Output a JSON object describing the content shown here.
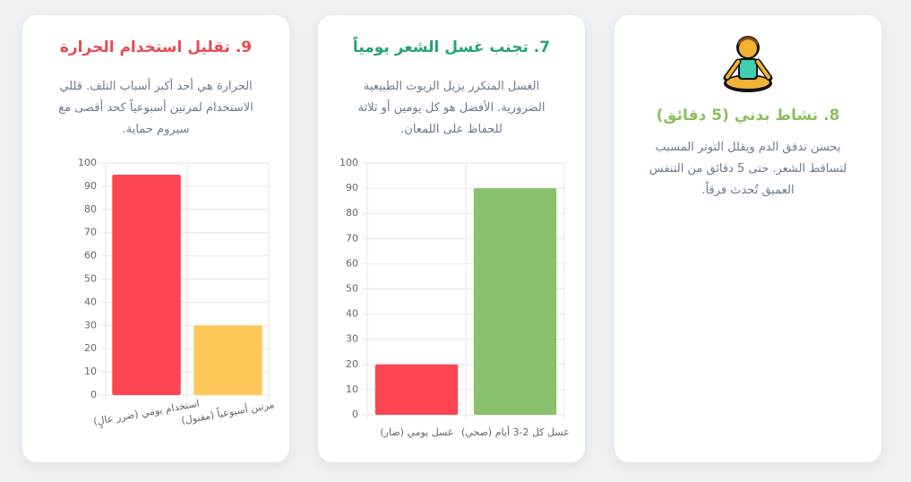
{
  "cards": [
    {
      "title": "9. تقليل استخدام الحرارة",
      "text": "الحرارة هي أحد أكبر أسباب التلف. قللي الاستخدام لمرتين أسبوعياً كحد أقصى مع سيروم حماية."
    },
    {
      "title": "7. تجنب غسل الشعر يومياً",
      "text": "الغسل المتكرر يزيل الزيوت الطبيعية الضرورية. الأفضل هو كل يومين أو ثلاثة للحفاظ على اللمعان."
    },
    {
      "title": "8. نشاط بدني (5 دقائق)",
      "text": "يحسن تدفق الدم ويقلل التوتر المسبب لتساقط الشعر. حتى 5 دقائق من التنفس العميق تُحدث فرقاً."
    }
  ],
  "chart_data": [
    {
      "type": "bar",
      "categories": [
        "استخدام يومي (ضرر عالٍ)",
        "مرتين أسبوعياً (مقبول)"
      ],
      "values": [
        95,
        30
      ],
      "colors": [
        "#ff4452",
        "#ffc85a"
      ],
      "ylim": [
        0,
        100
      ],
      "yticks": [
        0,
        10,
        20,
        30,
        40,
        50,
        60,
        70,
        80,
        90,
        100
      ],
      "grid": true
    },
    {
      "type": "bar",
      "categories": [
        "غسل يومي (ضار)",
        "غسل كل 2-3 أيام (صحي)"
      ],
      "values": [
        20,
        90
      ],
      "colors": [
        "#ff4452",
        "#88c06c"
      ],
      "ylim": [
        0,
        100
      ],
      "yticks": [
        0,
        10,
        20,
        30,
        40,
        50,
        60,
        70,
        80,
        90,
        100
      ],
      "grid": true
    }
  ]
}
